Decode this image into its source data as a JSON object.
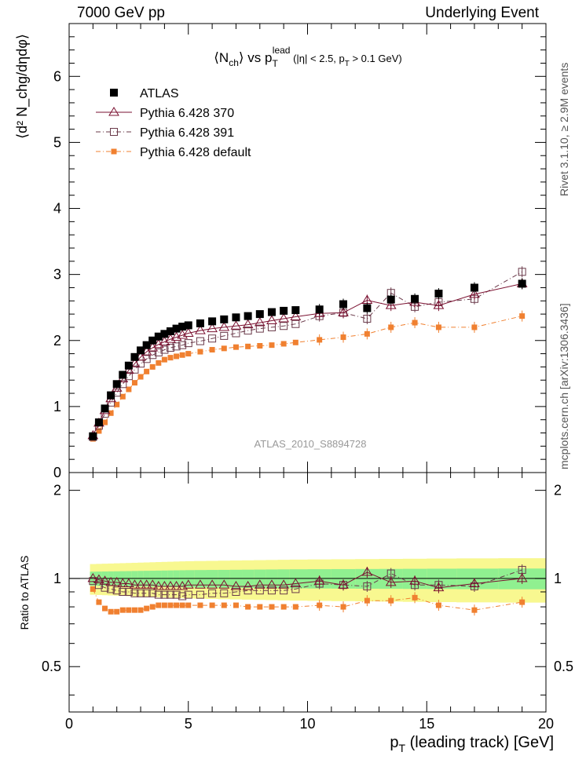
{
  "header": {
    "left": "7000 GeV pp",
    "right": "Underlying Event"
  },
  "side_labels": {
    "top": "Rivet 3.1.10, ≥ 2.9M events",
    "bottom": "mcplots.cern.ch [arXiv:1306.3436]"
  },
  "colors": {
    "atlas": "#000000",
    "py370": "#7a1030",
    "py391": "#6a3a4a",
    "pydefault": "#f08030",
    "band_inner": "#90f090",
    "band_outer": "#f8f890"
  },
  "chart_data": {
    "type": "scatter",
    "title": {
      "main": "⟨N",
      "sub1": "ch",
      "mid": "⟩ vs p",
      "sub2": "T",
      "sup2": "lead",
      "cut_pre": " (|η| < 2.5, p",
      "cut_sub": "T",
      "cut_post": " > 0.1 GeV)"
    },
    "analysis_label": "ATLAS_2010_S8894728",
    "ylabel_top": "⟨d² N_chg/dηdφ⟩",
    "ylabel_bottom": "Ratio to ATLAS",
    "xlabel": {
      "main": "p",
      "sub": "T",
      "rest": " (leading track) [GeV]"
    },
    "xlim": [
      0,
      20
    ],
    "ylim_top": [
      0,
      6.8
    ],
    "ylim_bottom": [
      0.35,
      2.3
    ],
    "x_ticks": [
      "0",
      "5",
      "10",
      "15",
      "20"
    ],
    "y_ticks_top": [
      "0",
      "1",
      "2",
      "3",
      "4",
      "5",
      "6"
    ],
    "y_ticks_bottom": [
      "0.5",
      "1",
      "2"
    ],
    "legend": [
      {
        "name": "ATLAS",
        "marker": "filled-square"
      },
      {
        "name": "Pythia 6.428 370",
        "marker": "open-triangle"
      },
      {
        "name": "Pythia 6.428 391",
        "marker": "open-square"
      },
      {
        "name": "Pythia 6.428 default",
        "marker": "small-filled-square"
      }
    ],
    "x": [
      1.0,
      1.25,
      1.5,
      1.75,
      2.0,
      2.25,
      2.5,
      2.75,
      3.0,
      3.25,
      3.5,
      3.75,
      4.0,
      4.25,
      4.5,
      4.75,
      5.0,
      5.5,
      6.0,
      6.5,
      7.0,
      7.5,
      8.0,
      8.5,
      9.0,
      9.5,
      10.5,
      11.5,
      12.5,
      13.5,
      14.5,
      15.5,
      17.0,
      19.0
    ],
    "series": [
      {
        "name": "ATLAS",
        "values": [
          0.55,
          0.76,
          0.97,
          1.17,
          1.34,
          1.48,
          1.62,
          1.75,
          1.85,
          1.93,
          2.0,
          2.06,
          2.1,
          2.14,
          2.18,
          2.21,
          2.23,
          2.26,
          2.29,
          2.32,
          2.35,
          2.37,
          2.4,
          2.43,
          2.45,
          2.46,
          2.47,
          2.55,
          2.49,
          2.62,
          2.63,
          2.71,
          2.8,
          2.86
        ]
      },
      {
        "name": "Pythia 6.428 370",
        "values": [
          0.56,
          0.75,
          0.94,
          1.12,
          1.28,
          1.42,
          1.55,
          1.65,
          1.75,
          1.83,
          1.89,
          1.94,
          1.98,
          2.02,
          2.05,
          2.08,
          2.11,
          2.15,
          2.18,
          2.2,
          2.22,
          2.24,
          2.27,
          2.3,
          2.33,
          2.36,
          2.41,
          2.42,
          2.61,
          2.53,
          2.58,
          2.53,
          2.7,
          2.86
        ]
      },
      {
        "name": "Pythia 6.428 391",
        "values": [
          0.54,
          0.71,
          0.89,
          1.06,
          1.21,
          1.34,
          1.46,
          1.56,
          1.65,
          1.72,
          1.78,
          1.82,
          1.86,
          1.89,
          1.91,
          1.93,
          1.96,
          1.99,
          2.03,
          2.07,
          2.11,
          2.15,
          2.18,
          2.2,
          2.22,
          2.25,
          2.37,
          2.42,
          2.33,
          2.72,
          2.51,
          2.58,
          2.63,
          3.04
        ]
      },
      {
        "name": "Pythia 6.428 default",
        "values": [
          0.51,
          0.63,
          0.76,
          0.9,
          1.03,
          1.15,
          1.26,
          1.36,
          1.45,
          1.53,
          1.6,
          1.66,
          1.71,
          1.74,
          1.76,
          1.78,
          1.8,
          1.83,
          1.86,
          1.88,
          1.9,
          1.91,
          1.92,
          1.93,
          1.95,
          1.97,
          2.01,
          2.05,
          2.1,
          2.2,
          2.27,
          2.2,
          2.2,
          2.37
        ]
      }
    ],
    "ratio_series": [
      {
        "name": "Pythia 6.428 370",
        "values": [
          1.0,
          0.99,
          0.98,
          0.97,
          0.97,
          0.96,
          0.96,
          0.95,
          0.95,
          0.95,
          0.95,
          0.94,
          0.94,
          0.94,
          0.94,
          0.94,
          0.95,
          0.95,
          0.95,
          0.95,
          0.94,
          0.94,
          0.95,
          0.95,
          0.95,
          0.96,
          0.98,
          0.95,
          1.05,
          0.97,
          0.98,
          0.93,
          0.96,
          1.0
        ]
      },
      {
        "name": "Pythia 6.428 391",
        "values": [
          0.98,
          0.95,
          0.93,
          0.92,
          0.91,
          0.9,
          0.9,
          0.89,
          0.89,
          0.89,
          0.89,
          0.88,
          0.88,
          0.88,
          0.88,
          0.87,
          0.88,
          0.88,
          0.89,
          0.89,
          0.9,
          0.91,
          0.91,
          0.91,
          0.91,
          0.92,
          0.96,
          0.95,
          0.94,
          1.04,
          0.95,
          0.95,
          0.94,
          1.07
        ]
      },
      {
        "name": "Pythia 6.428 default",
        "values": [
          0.92,
          0.83,
          0.79,
          0.77,
          0.77,
          0.78,
          0.78,
          0.78,
          0.78,
          0.79,
          0.8,
          0.81,
          0.81,
          0.81,
          0.81,
          0.81,
          0.81,
          0.81,
          0.81,
          0.81,
          0.81,
          0.8,
          0.8,
          0.8,
          0.8,
          0.8,
          0.81,
          0.8,
          0.84,
          0.84,
          0.86,
          0.81,
          0.78,
          0.83
        ]
      }
    ]
  }
}
